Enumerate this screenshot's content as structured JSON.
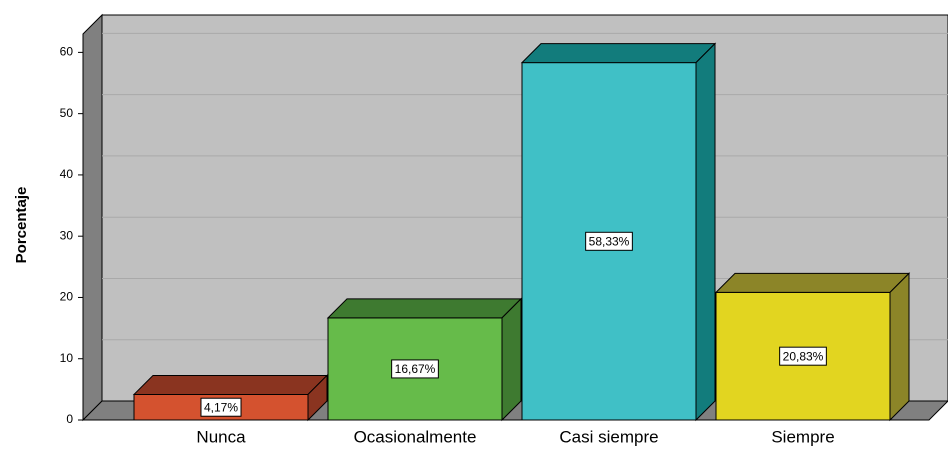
{
  "chart_data": {
    "type": "bar",
    "y_label": "Porcentaje",
    "categories": [
      "Nunca",
      "Ocasionalmente",
      "Casi siempre",
      "Siempre"
    ],
    "values": [
      4.17,
      16.67,
      58.33,
      20.83
    ],
    "value_labels": [
      "4,17%",
      "16,67%",
      "58,33%",
      "20,83%"
    ],
    "colors": [
      "#d4522f",
      "#66bb4a",
      "#40c0c6",
      "#e2d520"
    ],
    "side_colors": [
      "#8a3420",
      "#3e7a30",
      "#127c7c",
      "#8c8528"
    ],
    "ylim": [
      0,
      63
    ],
    "yticks": [
      0,
      10,
      20,
      30,
      40,
      50,
      60
    ],
    "grid": true
  }
}
